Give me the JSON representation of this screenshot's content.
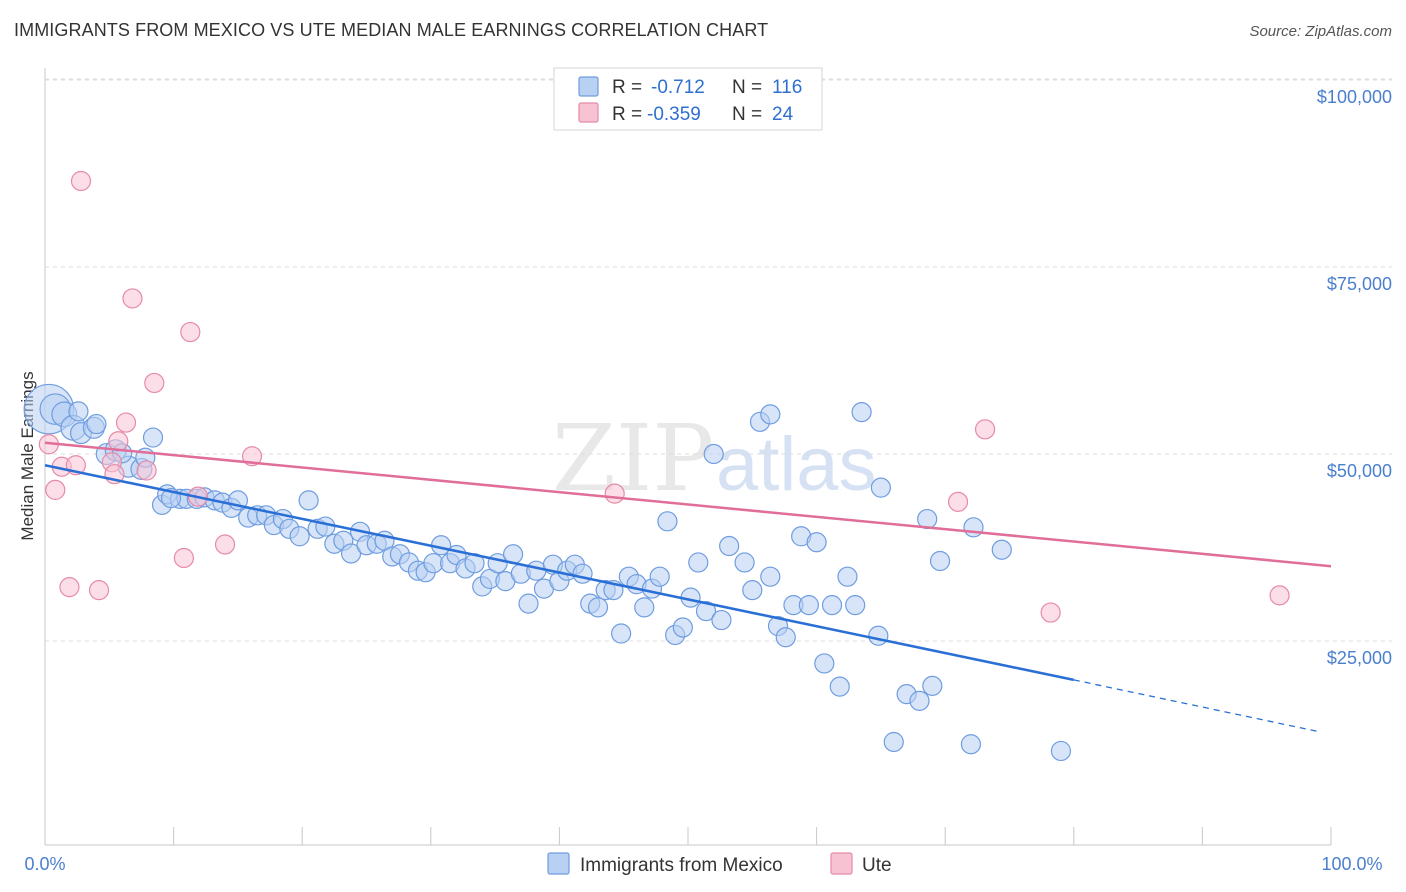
{
  "title": "IMMIGRANTS FROM MEXICO VS UTE MEDIAN MALE EARNINGS CORRELATION CHART",
  "source": "Source: ZipAtlas.com",
  "watermark": {
    "zip": "ZIP",
    "atlas": "atlas"
  },
  "colors": {
    "blue_fill": "#b8d0f2",
    "blue_stroke": "#6f9de0",
    "blue_line": "#2a6fd6",
    "pink_fill": "#f7c3d3",
    "pink_stroke": "#e68aa8",
    "pink_line": "#e06e98",
    "tick": "#4a7fd0"
  },
  "legend": {
    "rows": [
      {
        "r_label": "R = ",
        "r_value": "-0.712",
        "n_label": "N = ",
        "n_value": "116"
      },
      {
        "r_label": "R = ",
        "r_value": "-0.359",
        "n_label": "N = ",
        "n_value": "24"
      }
    ]
  },
  "chart_data": {
    "type": "scatter",
    "title": "IMMIGRANTS FROM MEXICO VS UTE MEDIAN MALE EARNINGS CORRELATION CHART",
    "xlabel": "",
    "ylabel": "Median Male Earnings",
    "xlim": [
      0,
      100
    ],
    "ylim": [
      0,
      105000
    ],
    "x_tick_labels": [
      "0.0%",
      "100.0%"
    ],
    "y_ticks": [
      25000,
      50000,
      75000,
      100000
    ],
    "y_tick_labels": [
      "$25,000",
      "$50,000",
      "$75,000",
      "$100,000"
    ],
    "grid": true,
    "legend_position": "top-center",
    "series": [
      {
        "name": "Immigrants from Mexico",
        "color": "#6f9de0",
        "trend": {
          "x0": 0,
          "y0": 48500,
          "x1": 80,
          "y1": 19800,
          "dashed_to_x": 99,
          "dashed_to_y": 12900
        },
        "points": [
          [
            0.3,
            56000,
            2.6
          ],
          [
            0.8,
            56000,
            1.6
          ],
          [
            1.5,
            55300,
            1.3
          ],
          [
            2.2,
            53500,
            1.3
          ],
          [
            2.8,
            52800,
            1.1
          ],
          [
            3.8,
            53500,
            1.1
          ],
          [
            4.8,
            50000,
            1.1
          ],
          [
            5.5,
            50500,
            1.1
          ],
          [
            6.5,
            48300,
            1.1
          ],
          [
            7.5,
            48000,
            1.1
          ],
          [
            7.8,
            49500,
            1.0
          ],
          [
            8.4,
            52200,
            1.0
          ],
          [
            9.1,
            43200,
            1.0
          ],
          [
            9.5,
            44600,
            1.0
          ],
          [
            10.5,
            44000,
            1.0
          ],
          [
            11.0,
            44000,
            1.0
          ],
          [
            11.8,
            44000,
            1.0
          ],
          [
            12.4,
            44200,
            1.0
          ],
          [
            13.2,
            43800,
            1.0
          ],
          [
            13.8,
            43500,
            1.0
          ],
          [
            14.5,
            42800,
            1.0
          ],
          [
            15.0,
            43800,
            1.0
          ],
          [
            15.8,
            41500,
            1.0
          ],
          [
            16.5,
            41800,
            1.0
          ],
          [
            17.2,
            41800,
            1.0
          ],
          [
            17.8,
            40500,
            1.0
          ],
          [
            18.5,
            41300,
            1.0
          ],
          [
            19.0,
            40000,
            1.0
          ],
          [
            19.8,
            39000,
            1.0
          ],
          [
            20.5,
            43800,
            1.0
          ],
          [
            21.2,
            40000,
            1.0
          ],
          [
            21.8,
            40300,
            1.0
          ],
          [
            22.5,
            38000,
            1.0
          ],
          [
            23.2,
            38400,
            1.0
          ],
          [
            23.8,
            36700,
            1.0
          ],
          [
            24.5,
            39600,
            1.0
          ],
          [
            25.0,
            37800,
            1.0
          ],
          [
            25.8,
            38000,
            1.0
          ],
          [
            26.4,
            38400,
            1.0
          ],
          [
            27.0,
            36300,
            1.0
          ],
          [
            27.6,
            36600,
            1.0
          ],
          [
            28.3,
            35500,
            1.0
          ],
          [
            29.0,
            34400,
            1.0
          ],
          [
            29.6,
            34200,
            1.0
          ],
          [
            30.2,
            35400,
            1.0
          ],
          [
            30.8,
            37800,
            1.0
          ],
          [
            31.5,
            35400,
            1.0
          ],
          [
            32.0,
            36500,
            1.0
          ],
          [
            32.7,
            34700,
            1.0
          ],
          [
            33.4,
            35400,
            1.0
          ],
          [
            34.0,
            32300,
            1.0
          ],
          [
            34.6,
            33300,
            1.0
          ],
          [
            35.2,
            35400,
            1.0
          ],
          [
            35.8,
            33000,
            1.0
          ],
          [
            36.4,
            36600,
            1.0
          ],
          [
            37.0,
            34000,
            1.0
          ],
          [
            37.6,
            30000,
            1.0
          ],
          [
            38.2,
            34400,
            1.0
          ],
          [
            38.8,
            32000,
            1.0
          ],
          [
            39.5,
            35200,
            1.0
          ],
          [
            40.0,
            33000,
            1.0
          ],
          [
            40.6,
            34400,
            1.0
          ],
          [
            41.2,
            35200,
            1.0
          ],
          [
            41.8,
            34000,
            1.0
          ],
          [
            42.4,
            30000,
            1.0
          ],
          [
            43.0,
            29500,
            1.0
          ],
          [
            43.6,
            31800,
            1.0
          ],
          [
            44.2,
            31800,
            1.0
          ],
          [
            44.8,
            26000,
            1.0
          ],
          [
            45.4,
            33600,
            1.0
          ],
          [
            46.0,
            32600,
            1.0
          ],
          [
            46.6,
            29500,
            1.0
          ],
          [
            47.2,
            32000,
            1.0
          ],
          [
            47.8,
            33600,
            1.0
          ],
          [
            48.4,
            41000,
            1.0
          ],
          [
            49.0,
            25800,
            1.0
          ],
          [
            49.6,
            26800,
            1.0
          ],
          [
            50.2,
            30800,
            1.0
          ],
          [
            50.8,
            35500,
            1.0
          ],
          [
            51.4,
            29000,
            1.0
          ],
          [
            52.0,
            50000,
            1.0
          ],
          [
            52.6,
            27800,
            1.0
          ],
          [
            53.2,
            37700,
            1.0
          ],
          [
            54.4,
            35500,
            1.0
          ],
          [
            55.0,
            31800,
            1.0
          ],
          [
            55.6,
            54300,
            1.0
          ],
          [
            56.4,
            33600,
            1.0
          ],
          [
            57.0,
            27000,
            1.0
          ],
          [
            57.6,
            25500,
            1.0
          ],
          [
            58.2,
            29800,
            1.0
          ],
          [
            58.8,
            39000,
            1.0
          ],
          [
            59.4,
            29800,
            1.0
          ],
          [
            60.0,
            38200,
            1.0
          ],
          [
            60.6,
            22000,
            1.0
          ],
          [
            61.2,
            29800,
            1.0
          ],
          [
            61.8,
            18900,
            1.0
          ],
          [
            62.4,
            33600,
            1.0
          ],
          [
            63.0,
            29800,
            1.0
          ],
          [
            64.8,
            25700,
            1.0
          ],
          [
            67.0,
            17900,
            1.0
          ],
          [
            68.6,
            41300,
            1.0
          ],
          [
            69.6,
            35700,
            1.0
          ],
          [
            72.2,
            40200,
            1.0
          ],
          [
            74.4,
            37200,
            1.0
          ],
          [
            56.4,
            55300,
            1.0
          ],
          [
            65.0,
            45500,
            1.0
          ],
          [
            79.0,
            10300,
            1.0
          ],
          [
            63.5,
            55600,
            1.0
          ],
          [
            66.0,
            11500,
            1.0
          ],
          [
            69.0,
            19000,
            1.0
          ],
          [
            68.0,
            17000,
            1.0
          ],
          [
            72.0,
            11200,
            1.0
          ],
          [
            2.6,
            55700,
            1.0
          ],
          [
            4.0,
            54000,
            1.0
          ],
          [
            6.0,
            50100,
            1.0
          ],
          [
            9.8,
            44100,
            1.0
          ]
        ]
      },
      {
        "name": "Ute",
        "color": "#e68aa8",
        "trend": {
          "x0": 0,
          "y0": 51500,
          "x1": 100,
          "y1": 35000
        },
        "points": [
          [
            0.3,
            51300,
            1.0
          ],
          [
            0.8,
            45200,
            1.0
          ],
          [
            1.3,
            48300,
            1.0
          ],
          [
            1.9,
            32200,
            1.0
          ],
          [
            2.4,
            48500,
            1.0
          ],
          [
            2.8,
            86500,
            1.0
          ],
          [
            4.2,
            31800,
            1.0
          ],
          [
            5.2,
            48900,
            1.0
          ],
          [
            5.4,
            47300,
            1.0
          ],
          [
            5.7,
            51700,
            1.0
          ],
          [
            6.3,
            54200,
            1.0
          ],
          [
            6.8,
            70800,
            1.0
          ],
          [
            7.9,
            47800,
            1.0
          ],
          [
            8.5,
            59500,
            1.0
          ],
          [
            10.8,
            36100,
            1.0
          ],
          [
            11.3,
            66300,
            1.0
          ],
          [
            11.9,
            44300,
            1.0
          ],
          [
            14.0,
            37900,
            1.0
          ],
          [
            16.1,
            49700,
            1.0
          ],
          [
            44.3,
            44700,
            1.0
          ],
          [
            71.0,
            43600,
            1.0
          ],
          [
            73.1,
            53300,
            1.0
          ],
          [
            78.2,
            28800,
            1.0
          ],
          [
            96.0,
            31100,
            1.0
          ]
        ]
      }
    ]
  },
  "bottom_legend": [
    "Immigrants from Mexico",
    "Ute"
  ]
}
